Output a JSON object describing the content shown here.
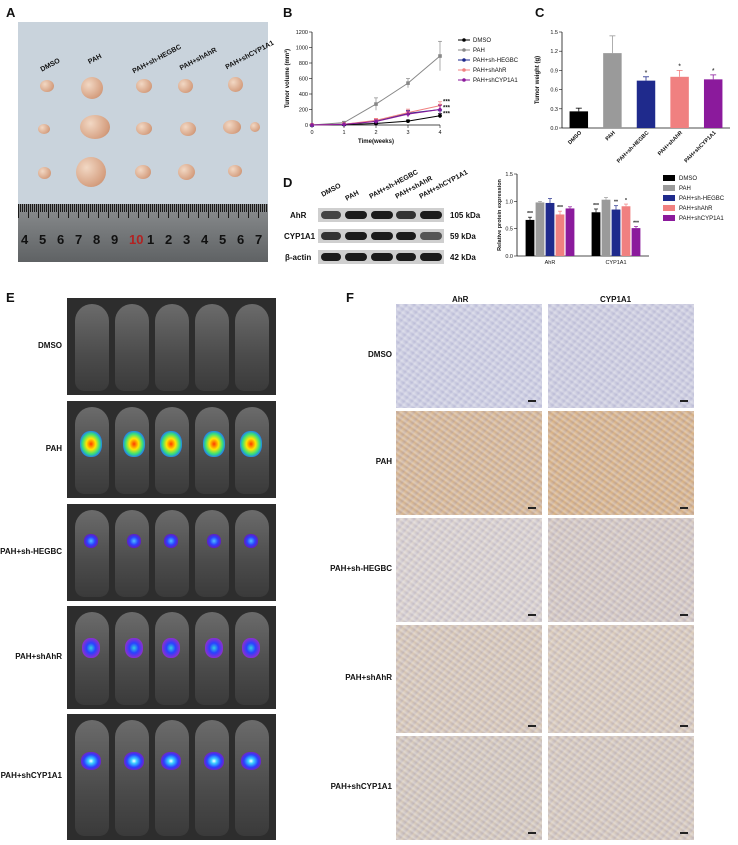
{
  "panels": {
    "A": "A",
    "B": "B",
    "C": "C",
    "D": "D",
    "E": "E",
    "F": "F"
  },
  "groups": [
    "DMSO",
    "PAH",
    "PAH+sh-HEGBC",
    "PAH+shAhR",
    "PAH+shCYP1A1"
  ],
  "panelA": {
    "labels": [
      "DMSO",
      "PAH",
      "PAH+sh-HEGBC",
      "PAH+shAhR",
      "PAH+shCYP1A1"
    ],
    "ruler_numbers": [
      "4",
      "5",
      "6",
      "7",
      "8",
      "9",
      "10",
      "1",
      "2",
      "3",
      "4",
      "5",
      "6",
      "7"
    ],
    "ruler_highlight_color": "#b22222"
  },
  "chart_data": [
    {
      "type": "line",
      "panel": "B",
      "x": [
        0,
        1,
        2,
        3,
        4
      ],
      "xlabel": "Time(weeks)",
      "ylabel": "Tumor volume (mm³)",
      "ylim": [
        0,
        1200
      ],
      "yticks": [
        0,
        200,
        400,
        600,
        800,
        1000,
        1200
      ],
      "xticks": [
        0,
        1,
        2,
        3,
        4
      ],
      "series": [
        {
          "name": "DMSO",
          "color": "#000000",
          "marker": "circle",
          "values": [
            0,
            5,
            20,
            50,
            120
          ],
          "err": [
            0,
            3,
            8,
            15,
            30
          ]
        },
        {
          "name": "PAH",
          "color": "#888888",
          "marker": "square",
          "values": [
            0,
            30,
            270,
            540,
            890
          ],
          "err": [
            0,
            15,
            80,
            60,
            190
          ]
        },
        {
          "name": "PAH+sh-HEGBC",
          "color": "#1f2a8c",
          "marker": "triangle",
          "values": [
            0,
            10,
            50,
            150,
            200
          ],
          "err": [
            0,
            5,
            20,
            40,
            60
          ]
        },
        {
          "name": "PAH+shAhR",
          "color": "#f08080",
          "marker": "triangle-down",
          "values": [
            0,
            10,
            60,
            160,
            250
          ],
          "err": [
            0,
            5,
            25,
            45,
            50
          ]
        },
        {
          "name": "PAH+shCYP1A1",
          "color": "#8b1a9c",
          "marker": "diamond",
          "values": [
            0,
            8,
            45,
            140,
            200
          ],
          "err": [
            0,
            5,
            20,
            40,
            55
          ]
        }
      ],
      "annotations": [
        "***",
        "***",
        "***"
      ]
    },
    {
      "type": "bar",
      "panel": "C",
      "categories": [
        "DMSO",
        "PAH",
        "PAH+sh-HEGBC",
        "PAH+shAhR",
        "PAH+shCYP1A1"
      ],
      "values": [
        0.26,
        1.17,
        0.74,
        0.8,
        0.76
      ],
      "err": [
        0.05,
        0.27,
        0.06,
        0.1,
        0.07
      ],
      "colors": [
        "#000000",
        "#9a9a9a",
        "#1f2a8c",
        "#f08080",
        "#8b1a9c"
      ],
      "significance": [
        "",
        "",
        "*",
        "*",
        "*"
      ],
      "ylabel": "Tumor weight (g)",
      "ylim": [
        0,
        1.5
      ],
      "yticks": [
        "0.0",
        "0.3",
        "0.6",
        "0.9",
        "1.2",
        "1.5"
      ]
    },
    {
      "type": "bar",
      "panel": "D",
      "categories": [
        "AhR",
        "CYP1A1"
      ],
      "series": [
        {
          "name": "DMSO",
          "color": "#000000",
          "values": [
            0.66,
            0.8
          ],
          "err": [
            0.05,
            0.06
          ],
          "sig": [
            "***",
            "***"
          ]
        },
        {
          "name": "PAH",
          "color": "#9a9a9a",
          "values": [
            0.98,
            1.03
          ],
          "err": [
            0.02,
            0.04
          ],
          "sig": [
            "",
            ""
          ]
        },
        {
          "name": "PAH+sh-HEGBC",
          "color": "#1f2a8c",
          "values": [
            0.97,
            0.85
          ],
          "err": [
            0.08,
            0.07
          ],
          "sig": [
            "",
            "**"
          ]
        },
        {
          "name": "PAH+shAhR",
          "color": "#f08080",
          "values": [
            0.76,
            0.91
          ],
          "err": [
            0.06,
            0.04
          ],
          "sig": [
            "***",
            "*"
          ]
        },
        {
          "name": "PAH+shCYP1A1",
          "color": "#8b1a9c",
          "values": [
            0.87,
            0.51
          ],
          "err": [
            0.03,
            0.03
          ],
          "sig": [
            "",
            "***"
          ]
        }
      ],
      "ylabel": "Relative protein expression",
      "ylim": [
        0,
        1.5
      ],
      "yticks": [
        "0.0",
        "0.5",
        "1.0",
        "1.5"
      ]
    }
  ],
  "panelD_blot": {
    "columns": [
      "DMSO",
      "PAH",
      "PAH+sh-HEGBC",
      "PAH+shAhR",
      "PAH+shCYP1A1"
    ],
    "rows": [
      {
        "name": "AhR",
        "kda": "105 kDa"
      },
      {
        "name": "CYP1A1",
        "kda": "59 kDa"
      },
      {
        "name": "β-actin",
        "kda": "42 kDa"
      }
    ]
  },
  "panelE": {
    "rows": [
      "DMSO",
      "PAH",
      "PAH+sh-HEGBC",
      "PAH+shAhR",
      "PAH+shCYP1A1"
    ]
  },
  "panelF": {
    "columns": [
      "AhR",
      "CYP1A1"
    ],
    "rows": [
      "DMSO",
      "PAH",
      "PAH+sh-HEGBC",
      "PAH+shAhR",
      "PAH+shCYP1A1"
    ]
  }
}
